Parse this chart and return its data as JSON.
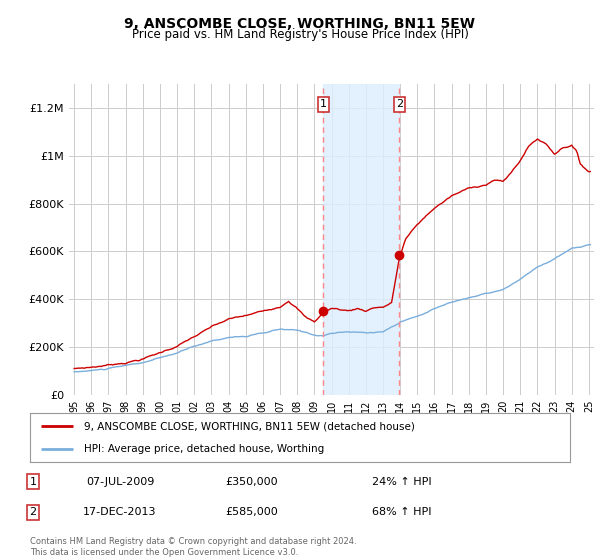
{
  "title": "9, ANSCOMBE CLOSE, WORTHING, BN11 5EW",
  "subtitle": "Price paid vs. HM Land Registry's House Price Index (HPI)",
  "legend_line1": "9, ANSCOMBE CLOSE, WORTHING, BN11 5EW (detached house)",
  "legend_line2": "HPI: Average price, detached house, Worthing",
  "transaction1_date": "07-JUL-2009",
  "transaction1_price": 350000,
  "transaction1_label": "24% ↑ HPI",
  "transaction2_date": "17-DEC-2013",
  "transaction2_price": 585000,
  "transaction2_label": "68% ↑ HPI",
  "footer1": "Contains HM Land Registry data © Crown copyright and database right 2024.",
  "footer2": "This data is licensed under the Open Government Licence v3.0.",
  "red_color": "#cc0000",
  "blue_color": "#7aaedc",
  "bg_color": "#ffffff",
  "grid_color": "#cccccc",
  "shade_color": "#ddeeff",
  "vline_color": "#ff8888",
  "ylim": [
    0,
    1300000
  ],
  "yticks": [
    0,
    200000,
    400000,
    600000,
    800000,
    1000000,
    1200000
  ],
  "ytick_labels": [
    "£0",
    "£200K",
    "£400K",
    "£600K",
    "£800K",
    "£1M",
    "£1.2M"
  ],
  "transaction1_x": 2009.52,
  "transaction2_x": 2013.96,
  "xmin": 1994.7,
  "xmax": 2025.3
}
